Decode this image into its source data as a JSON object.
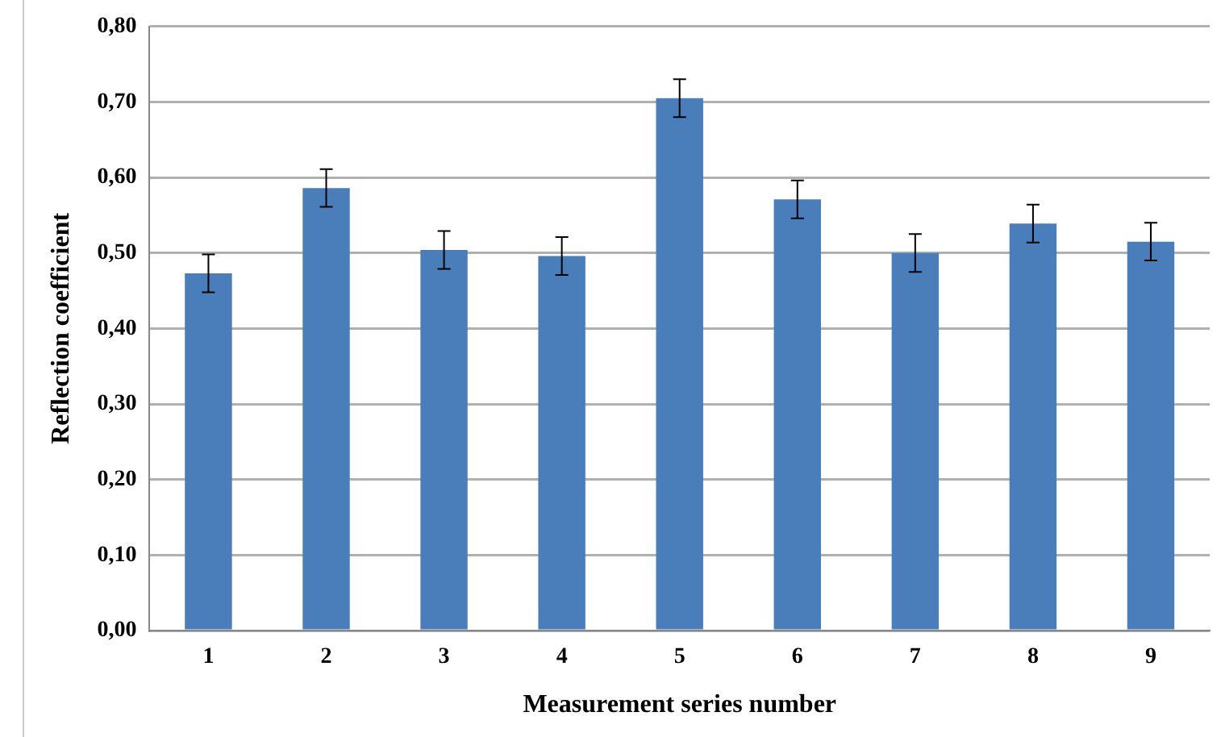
{
  "chart_data": {
    "type": "bar",
    "xlabel": "Measurement series number",
    "ylabel": "Reflection coefficient",
    "categories": [
      "1",
      "2",
      "3",
      "4",
      "5",
      "6",
      "7",
      "8",
      "9"
    ],
    "values": [
      0.473,
      0.586,
      0.504,
      0.496,
      0.705,
      0.571,
      0.5,
      0.539,
      0.515
    ],
    "errors": [
      0.025,
      0.025,
      0.025,
      0.025,
      0.025,
      0.025,
      0.025,
      0.025,
      0.025
    ],
    "color": "#4a7ebb",
    "ylim": [
      0,
      0.8
    ],
    "yticks": [
      {
        "value": 0,
        "label": "0,00"
      },
      {
        "value": 0.1,
        "label": "0,10"
      },
      {
        "value": 0.2,
        "label": "0,20"
      },
      {
        "value": 0.3,
        "label": "0,30"
      },
      {
        "value": 0.4,
        "label": "0,40"
      },
      {
        "value": 0.5,
        "label": "0,50"
      },
      {
        "value": 0.6,
        "label": "0,60"
      },
      {
        "value": 0.7,
        "label": "0,70"
      },
      {
        "value": 0.8,
        "label": "0,80"
      }
    ],
    "grid": "y",
    "legend": false
  }
}
